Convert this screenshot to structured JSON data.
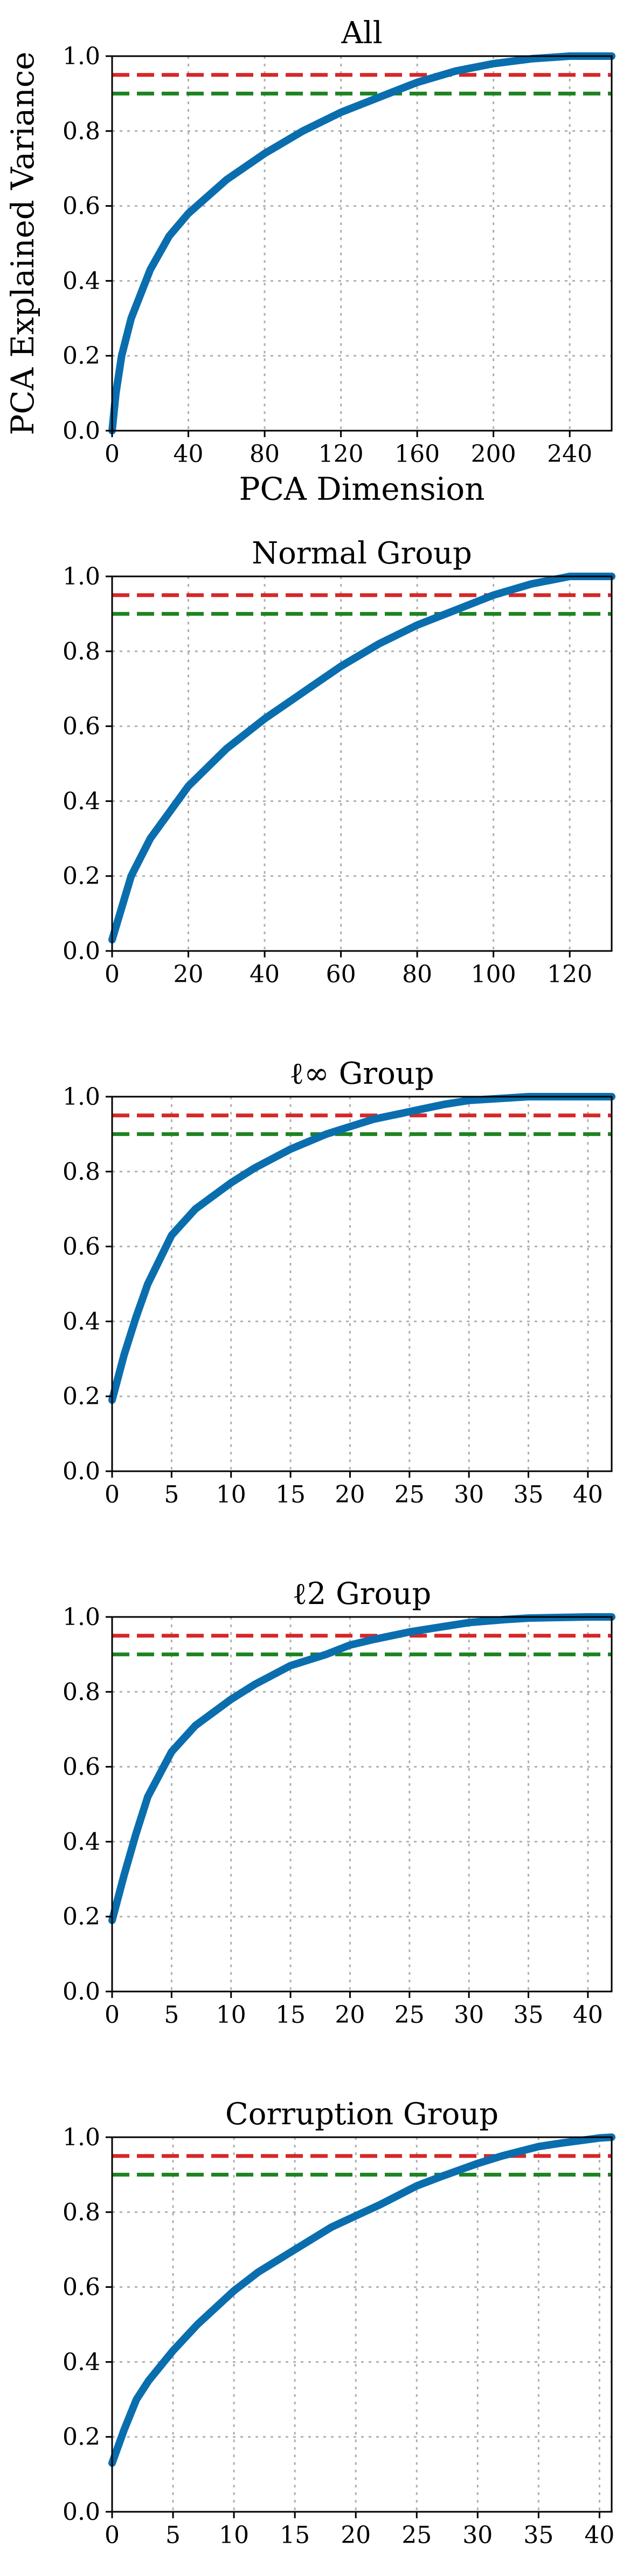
{
  "colors": {
    "curve": "#0A6EAE",
    "threshold_95": "#D62728",
    "threshold_90": "#1E8321"
  },
  "chart_data": [
    {
      "type": "line",
      "title": "All",
      "xlabel": "PCA Dimension",
      "ylabel": "PCA Explained Variance",
      "xlim": [
        0,
        262
      ],
      "ylim": [
        0,
        1.0
      ],
      "xticks": [
        0,
        40,
        80,
        120,
        160,
        200,
        240
      ],
      "yticks": [
        0.0,
        0.2,
        0.4,
        0.6,
        0.8,
        1.0
      ],
      "grid": true,
      "hlines": [
        0.95,
        0.9
      ],
      "x": [
        0,
        2,
        5,
        10,
        20,
        30,
        40,
        60,
        80,
        100,
        120,
        140,
        160,
        180,
        200,
        220,
        240,
        262
      ],
      "y": [
        0.0,
        0.1,
        0.2,
        0.3,
        0.43,
        0.52,
        0.58,
        0.67,
        0.74,
        0.8,
        0.85,
        0.89,
        0.93,
        0.96,
        0.98,
        0.993,
        1.0,
        1.0
      ]
    },
    {
      "type": "line",
      "title": "Normal Group",
      "xlabel": "",
      "ylabel": "",
      "xlim": [
        0,
        131
      ],
      "ylim": [
        0,
        1.0
      ],
      "xticks": [
        0,
        20,
        40,
        60,
        80,
        100,
        120
      ],
      "yticks": [
        0.0,
        0.2,
        0.4,
        0.6,
        0.8,
        1.0
      ],
      "grid": true,
      "hlines": [
        0.95,
        0.9
      ],
      "x": [
        0,
        5,
        10,
        20,
        30,
        40,
        50,
        60,
        70,
        80,
        90,
        100,
        110,
        120,
        131
      ],
      "y": [
        0.03,
        0.2,
        0.3,
        0.44,
        0.54,
        0.62,
        0.69,
        0.76,
        0.82,
        0.87,
        0.91,
        0.95,
        0.98,
        1.0,
        1.0
      ]
    },
    {
      "type": "line",
      "title": "ℓ∞ Group",
      "xlabel": "",
      "ylabel": "",
      "xlim": [
        0,
        42
      ],
      "ylim": [
        0,
        1.0
      ],
      "xticks": [
        0,
        5,
        10,
        15,
        20,
        25,
        30,
        35,
        40
      ],
      "yticks": [
        0.0,
        0.2,
        0.4,
        0.6,
        0.8,
        1.0
      ],
      "grid": true,
      "hlines": [
        0.95,
        0.9
      ],
      "x": [
        0,
        1,
        2,
        3,
        5,
        7,
        10,
        12,
        15,
        18,
        20,
        22,
        25,
        28,
        30,
        33,
        35,
        40,
        42
      ],
      "y": [
        0.19,
        0.31,
        0.41,
        0.5,
        0.63,
        0.7,
        0.77,
        0.81,
        0.86,
        0.9,
        0.92,
        0.94,
        0.96,
        0.98,
        0.99,
        0.996,
        1.0,
        1.0,
        1.0
      ]
    },
    {
      "type": "line",
      "title": "ℓ2 Group",
      "xlabel": "",
      "ylabel": "",
      "xlim": [
        0,
        42
      ],
      "ylim": [
        0,
        1.0
      ],
      "xticks": [
        0,
        5,
        10,
        15,
        20,
        25,
        30,
        35,
        40
      ],
      "yticks": [
        0.0,
        0.2,
        0.4,
        0.6,
        0.8,
        1.0
      ],
      "grid": true,
      "hlines": [
        0.95,
        0.9
      ],
      "x": [
        0,
        1,
        2,
        3,
        5,
        7,
        10,
        12,
        15,
        18,
        20,
        22,
        25,
        28,
        30,
        33,
        35,
        40,
        42
      ],
      "y": [
        0.19,
        0.31,
        0.42,
        0.52,
        0.64,
        0.71,
        0.78,
        0.82,
        0.87,
        0.9,
        0.925,
        0.94,
        0.96,
        0.975,
        0.985,
        0.993,
        0.997,
        1.0,
        1.0
      ]
    },
    {
      "type": "line",
      "title": "Corruption Group",
      "xlabel": "",
      "ylabel": "",
      "xlim": [
        0,
        41
      ],
      "ylim": [
        0,
        1.0
      ],
      "xticks": [
        0,
        5,
        10,
        15,
        20,
        25,
        30,
        35,
        40
      ],
      "yticks": [
        0.0,
        0.2,
        0.4,
        0.6,
        0.8,
        1.0
      ],
      "grid": true,
      "hlines": [
        0.95,
        0.9
      ],
      "x": [
        0,
        1,
        2,
        3,
        5,
        7,
        10,
        12,
        15,
        18,
        20,
        22,
        25,
        27,
        30,
        32,
        35,
        37,
        40,
        41
      ],
      "y": [
        0.13,
        0.22,
        0.3,
        0.35,
        0.43,
        0.5,
        0.59,
        0.64,
        0.7,
        0.76,
        0.79,
        0.82,
        0.87,
        0.895,
        0.93,
        0.95,
        0.975,
        0.985,
        0.998,
        1.0
      ]
    }
  ]
}
